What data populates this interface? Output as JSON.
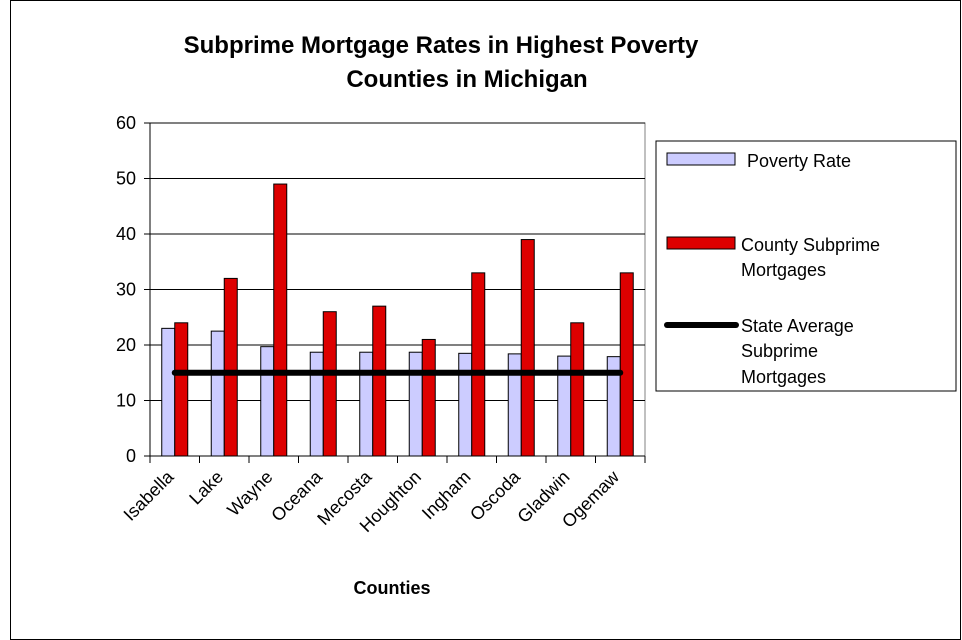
{
  "chart_data": {
    "type": "bar",
    "title_lines": [
      "Subprime Mortgage Rates in Highest Poverty",
      "Counties in Michigan"
    ],
    "xlabel": "Counties",
    "ylabel": "",
    "ylim": [
      0,
      60
    ],
    "yticks": [
      0,
      10,
      20,
      30,
      40,
      50,
      60
    ],
    "grid": true,
    "legend_position": "right",
    "categories": [
      "Isabella",
      "Lake",
      "Wayne",
      "Oceana",
      "Mecosta",
      "Houghton",
      "Ingham",
      "Oscoda",
      "Gladwin",
      "Ogemaw"
    ],
    "series": [
      {
        "name": "Poverty Rate",
        "kind": "bar",
        "color": "#CCCCFF",
        "values": [
          23,
          22.5,
          19.7,
          18.7,
          18.7,
          18.7,
          18.5,
          18.4,
          18.0,
          17.9
        ]
      },
      {
        "name": "County Subprime Mortgages",
        "kind": "bar",
        "color": "#DD0000",
        "values": [
          24,
          32,
          49,
          26,
          27,
          21,
          33,
          39,
          24,
          33
        ]
      },
      {
        "name": "State Average Subprime Mortgages",
        "kind": "line",
        "color": "#000000",
        "value": 15
      }
    ],
    "legend_lines": [
      [
        "Poverty Rate"
      ],
      [
        "County Subprime",
        "Mortgages"
      ],
      [
        "State Average",
        "Subprime",
        "Mortgages"
      ]
    ]
  }
}
